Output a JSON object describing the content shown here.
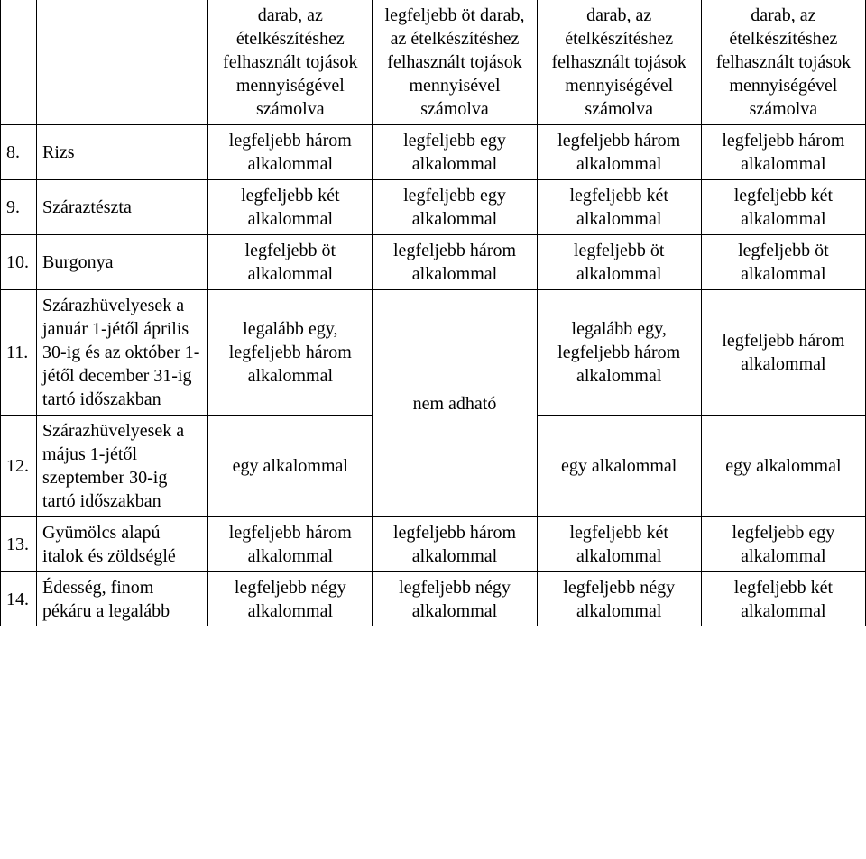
{
  "header": {
    "c3": "darab, az ételkészítéshez felhasznált tojások mennyiségével számolva",
    "c4": "legfeljebb öt darab, az ételkészítéshez felhasznált tojások mennyisével számolva",
    "c5": "darab, az ételkészítéshez felhasznált tojások mennyiségével számolva",
    "c6": "darab, az ételkészítéshez felhasznált tojások mennyiségével számolva"
  },
  "rows": {
    "r8": {
      "num": "8.",
      "name": "Rizs",
      "c3": "legfeljebb három alkalommal",
      "c4": "legfeljebb egy alkalommal",
      "c5": "legfeljebb három alkalommal",
      "c6": "legfeljebb három alkalommal"
    },
    "r9": {
      "num": "9.",
      "name": "Száraztészta",
      "c3": "legfeljebb két alkalommal",
      "c4": "legfeljebb egy alkalommal",
      "c5": "legfeljebb két alkalommal",
      "c6": "legfeljebb két alkalommal"
    },
    "r10": {
      "num": "10.",
      "name": "Burgonya",
      "c3": "legfeljebb öt alkalommal",
      "c4": "legfeljebb három alkalommal",
      "c5": "legfeljebb öt alkalommal",
      "c6": "legfeljebb öt alkalommal"
    },
    "r11": {
      "num": "11.",
      "name": "Szárazhüvelyesek a január 1-jétől április 30-ig és az október 1-jétől december 31-ig tartó időszakban",
      "c3": "legalább egy, legfeljebb három alkalommal",
      "c4": "nem adható",
      "c5": "legalább egy, legfeljebb három alkalommal",
      "c6": "legfeljebb három alkalommal"
    },
    "r12": {
      "num": "12.",
      "name": "Szárazhüvelyesek a május 1-jétől szeptember 30-ig tartó időszakban",
      "c3": "egy alkalommal",
      "c5": "egy alkalommal",
      "c6": "egy alkalommal"
    },
    "r13": {
      "num": "13.",
      "name": "Gyümölcs alapú italok és zöldséglé",
      "c3": "legfeljebb három alkalommal",
      "c4": "legfeljebb három alkalommal",
      "c5": "legfeljebb két alkalommal",
      "c6": "legfeljebb egy alkalommal"
    },
    "r14": {
      "num": "14.",
      "name": "Édesség, finom pékáru a legalább",
      "c3": "legfeljebb négy alkalommal",
      "c4": "legfeljebb négy alkalommal",
      "c5": "legfeljebb négy alkalommal",
      "c6": "legfeljebb két alkalommal"
    }
  }
}
